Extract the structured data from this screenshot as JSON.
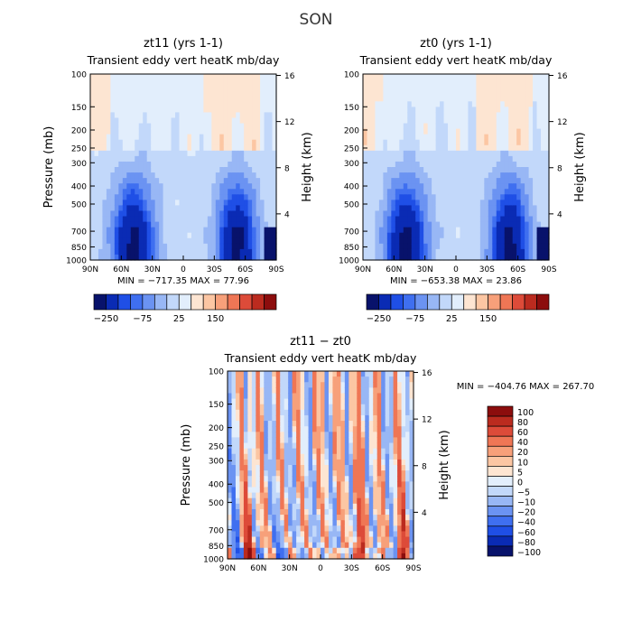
{
  "figure": {
    "title": "SON"
  },
  "chart_data": [
    {
      "type": "heatmap",
      "title": "zt11  (yrs 1-1)",
      "subtitle": "Transient eddy vert heatK mb/day",
      "xlabel": "",
      "ylabel": "Pressure (mb)",
      "y2label": "Height (km)",
      "x_ticks": [
        "90N",
        "60N",
        "30N",
        "0",
        "30S",
        "60S",
        "90S"
      ],
      "x_range": [
        90,
        -90
      ],
      "y_ticks": [
        "100",
        "150",
        "200",
        "250",
        "300",
        "400",
        "500",
        "700",
        "850",
        "1000"
      ],
      "y_range": [
        100,
        1000
      ],
      "y_scale": "log",
      "y2_ticks": [
        "16",
        "12",
        "8",
        "4"
      ],
      "stats": "MIN = −717.35   MAX =  77.96",
      "colorbar_labels": [
        "−250",
        "−75",
        "25",
        "150"
      ],
      "colorbar_colors": [
        "#08126b",
        "#0a2bb4",
        "#1f4fe6",
        "#3f6ff0",
        "#6b93f2",
        "#98b7f5",
        "#c2d8fa",
        "#e2eefc",
        "#fde5d2",
        "#fcc6a3",
        "#f7a07a",
        "#ef7655",
        "#dd4b39",
        "#bb2b1f",
        "#8c0d0d"
      ],
      "value_range": [
        -717.35,
        77.96
      ]
    },
    {
      "type": "heatmap",
      "title": "zt0  (yrs 1-1)",
      "subtitle": "Transient eddy vert heatK mb/day",
      "xlabel": "",
      "ylabel": "",
      "y2label": "Height (km)",
      "x_ticks": [
        "90N",
        "60N",
        "30N",
        "0",
        "30S",
        "60S",
        "90S"
      ],
      "x_range": [
        90,
        -90
      ],
      "y_ticks": [
        "100",
        "150",
        "200",
        "250",
        "300",
        "400",
        "500",
        "700",
        "850",
        "1000"
      ],
      "y_range": [
        100,
        1000
      ],
      "y_scale": "log",
      "y2_ticks": [
        "16",
        "12",
        "8",
        "4"
      ],
      "stats": "MIN = −653.38   MAX =  23.86",
      "colorbar_labels": [
        "−250",
        "−75",
        "25",
        "150"
      ],
      "colorbar_colors": [
        "#08126b",
        "#0a2bb4",
        "#1f4fe6",
        "#3f6ff0",
        "#6b93f2",
        "#98b7f5",
        "#c2d8fa",
        "#e2eefc",
        "#fde5d2",
        "#fcc6a3",
        "#f7a07a",
        "#ef7655",
        "#dd4b39",
        "#bb2b1f",
        "#8c0d0d"
      ],
      "value_range": [
        -653.38,
        23.86
      ]
    },
    {
      "type": "heatmap",
      "title": "zt11 − zt0",
      "subtitle": "Transient eddy vert heatK mb/day",
      "xlabel": "",
      "ylabel": "Pressure (mb)",
      "y2label": "Height (km)",
      "x_ticks": [
        "90N",
        "60N",
        "30N",
        "0",
        "30S",
        "60S",
        "90S"
      ],
      "x_range": [
        90,
        -90
      ],
      "y_ticks": [
        "100",
        "150",
        "200",
        "250",
        "300",
        "400",
        "500",
        "700",
        "850",
        "1000"
      ],
      "y_range": [
        100,
        1000
      ],
      "y_scale": "log",
      "y2_ticks": [
        "16",
        "12",
        "8",
        "4"
      ],
      "stats": "MIN = −404.76   MAX = 267.70",
      "colorbar_labels": [
        "100",
        "80",
        "60",
        "40",
        "20",
        "10",
        "5",
        "0",
        "−5",
        "−10",
        "−20",
        "−40",
        "−60",
        "−80",
        "−100"
      ],
      "colorbar_colors": [
        "#8c0d0d",
        "#bb2b1f",
        "#dd4b39",
        "#ef7655",
        "#f7a07a",
        "#fcc6a3",
        "#fde5d2",
        "#e2eefc",
        "#c2d8fa",
        "#98b7f5",
        "#6b93f2",
        "#3f6ff0",
        "#1f4fe6",
        "#0a2bb4",
        "#08126b"
      ],
      "value_range": [
        -404.76,
        267.7
      ]
    }
  ]
}
